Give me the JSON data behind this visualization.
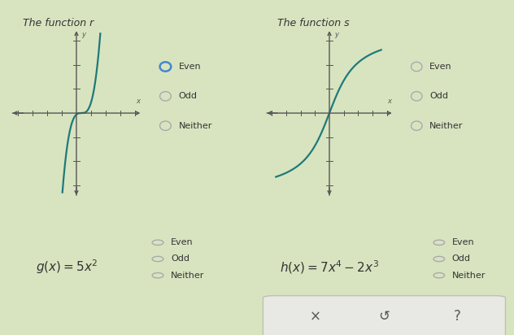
{
  "title_r": "The function r",
  "title_s": "The function s",
  "radio_labels": [
    "Even",
    "Odd",
    "Neither"
  ],
  "curve_color": "#1e7a7a",
  "bg_top": "#e8efd8",
  "bg_bottom": "#eaead8",
  "bg_outer": "#d8e4c0",
  "axis_color": "#555555",
  "text_color": "#333333",
  "radio_unselected": "#aaaaaa",
  "radio_selected": "#4488cc",
  "border_color": "#c8c8b8",
  "btn_bg": "#e4e4e0",
  "btn_border": "#c0c0b8",
  "btn_text": "#555555",
  "title_font": 9,
  "label_font": 9,
  "radio_font": 8
}
